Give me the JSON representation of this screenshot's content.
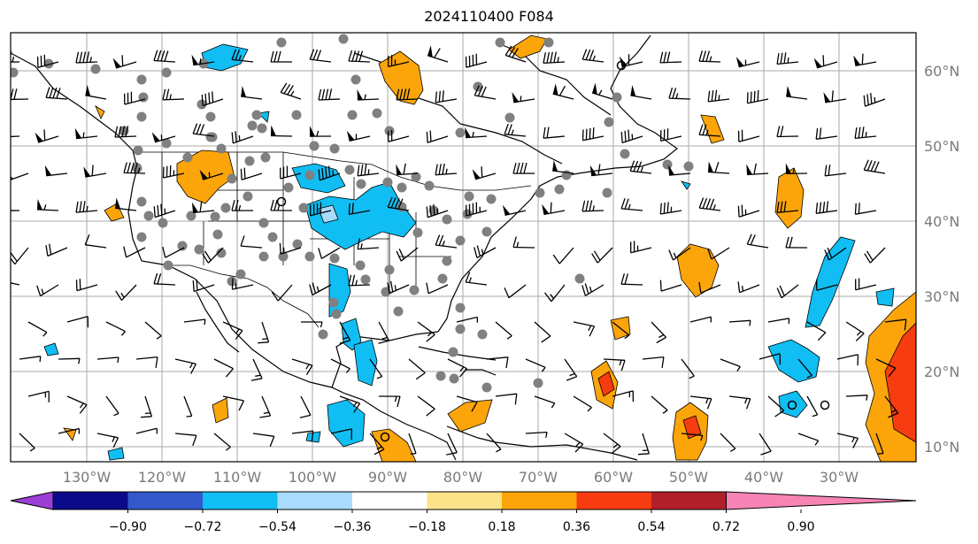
{
  "title": "2024110400 F084",
  "map": {
    "type": "contour map with wind barbs",
    "lon_range_deg": [
      -138,
      -16
    ],
    "lat_range_deg": [
      8,
      65
    ],
    "grid": true,
    "longitude_labels": [
      "130°W",
      "120°W",
      "110°W",
      "100°W",
      "90°W",
      "80°W",
      "70°W",
      "60°W",
      "50°W",
      "40°W",
      "30°W"
    ],
    "latitude_labels": [
      "60°N",
      "50°N",
      "40°N",
      "30°N",
      "20°N",
      "10°N"
    ],
    "overlay_symbols": [
      "grey filled dots",
      "black wind barbs",
      "black open circles"
    ]
  },
  "colorbar": {
    "extend": "both",
    "ticks": [
      "−0.90",
      "−0.72",
      "−0.54",
      "−0.36",
      "−0.18",
      "0.18",
      "0.36",
      "0.54",
      "0.72",
      "0.90"
    ],
    "colors": [
      "#9b3fd6",
      "#0a0a8a",
      "#3358cc",
      "#10bef4",
      "#a9dcfc",
      "#ffffff",
      "#fce38a",
      "#fca50a",
      "#f63c10",
      "#b0202a",
      "#f784b4"
    ]
  }
}
